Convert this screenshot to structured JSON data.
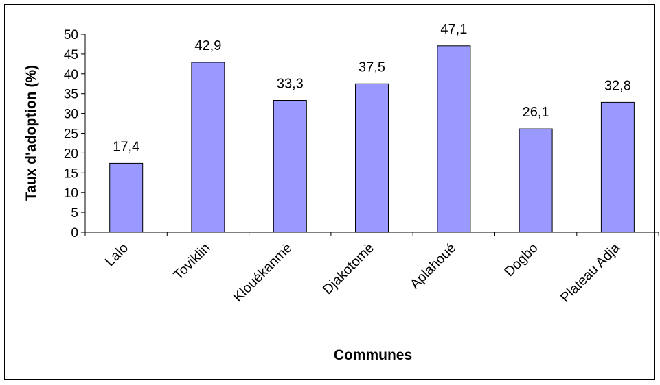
{
  "chart_data": {
    "type": "bar",
    "title": "",
    "xlabel": "Communes",
    "ylabel": "Taux d'adoption (%)",
    "categories": [
      "Lalo",
      "Toviklin",
      "Klouékanmè",
      "Djakotomè",
      "Aplahoué",
      "Dogbo",
      "Plateau Adja"
    ],
    "values": [
      17.4,
      42.9,
      33.3,
      37.5,
      47.1,
      26.1,
      32.8
    ],
    "value_labels": [
      "17,4",
      "42,9",
      "33,3",
      "37,5",
      "47,1",
      "26,1",
      "32,8"
    ],
    "ylim": [
      0,
      50
    ],
    "yticks": [
      0,
      5,
      10,
      15,
      20,
      25,
      30,
      35,
      40,
      45,
      50
    ],
    "ytick_labels": [
      "0",
      "5",
      "10",
      "15",
      "20",
      "25",
      "30",
      "35",
      "40",
      "45",
      "50"
    ],
    "grid": false,
    "legend": "none",
    "bar_color": "#9999ff",
    "bar_edge_color": "#000000"
  }
}
